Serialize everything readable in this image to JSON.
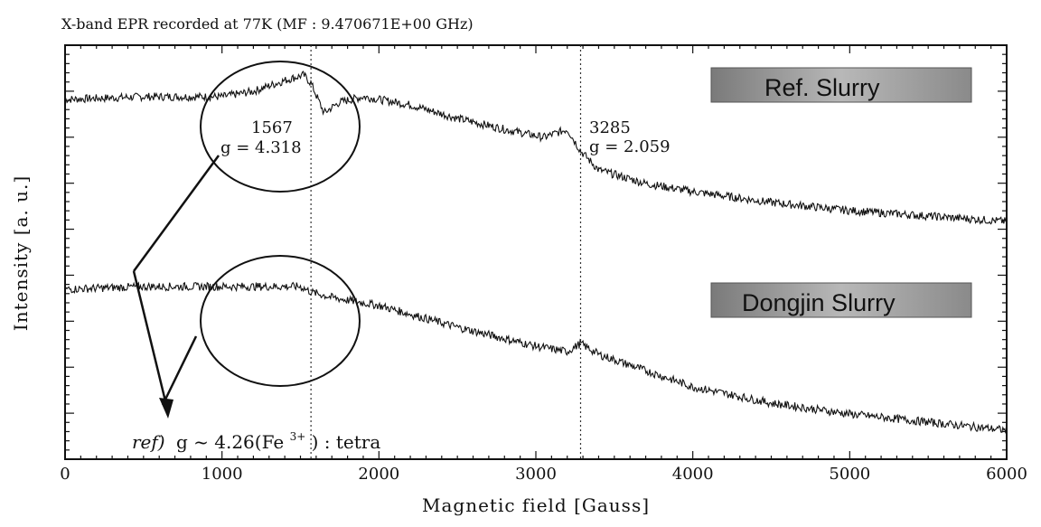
{
  "chart_data": {
    "type": "line",
    "title": "X-band EPR recorded at 77K (MF :  9.470671E+00 GHz)",
    "xlabel": "Magnetic field [Gauss]",
    "ylabel": "Intensity [a. u.]",
    "xlim": [
      0,
      6000
    ],
    "xticks": [
      "0",
      "1000",
      "2000",
      "3000",
      "4000",
      "5000",
      "6000"
    ],
    "y_tick_labels_shown": false,
    "grid": false,
    "series": [
      {
        "name": "Ref. Slurry",
        "x": [
          0,
          500,
          1000,
          1200,
          1400,
          1520,
          1567,
          1650,
          1750,
          1900,
          2200,
          2500,
          2800,
          3050,
          3200,
          3285,
          3400,
          3700,
          4000,
          4500,
          5000,
          5500,
          6000
        ],
        "y": [
          0.8,
          0.81,
          0.81,
          0.83,
          0.87,
          0.89,
          0.86,
          0.75,
          0.79,
          0.81,
          0.78,
          0.73,
          0.69,
          0.66,
          0.69,
          0.61,
          0.54,
          0.49,
          0.46,
          0.42,
          0.39,
          0.37,
          0.35
        ]
      },
      {
        "name": "Dongjin Slurry",
        "x": [
          0,
          500,
          1000,
          1500,
          1567,
          1700,
          2000,
          2500,
          3000,
          3200,
          3285,
          3400,
          3700,
          4000,
          4500,
          5000,
          5500,
          6000
        ],
        "y": [
          0.1,
          0.11,
          0.11,
          0.11,
          0.09,
          0.07,
          0.04,
          -0.04,
          -0.11,
          -0.13,
          -0.1,
          -0.14,
          -0.2,
          -0.26,
          -0.32,
          -0.36,
          -0.39,
          -0.42
        ]
      }
    ],
    "reference_lines": [
      {
        "x": 1567,
        "style": "dotted"
      },
      {
        "x": 3285,
        "style": "dotted"
      }
    ],
    "annotations": [
      {
        "field": "1567",
        "g": "g = 4.318"
      },
      {
        "field": "3285",
        "g": "g = 2.059"
      }
    ],
    "legend": [
      {
        "label": "Ref. Slurry",
        "position": "top-right"
      },
      {
        "label": "Dongjin Slurry",
        "position": "middle-right"
      }
    ],
    "footnote": {
      "prefix": "ref)",
      "text_before": "g ~ 4.26(Fe",
      "superscript": "3+",
      "text_after": ") : tetra"
    }
  }
}
